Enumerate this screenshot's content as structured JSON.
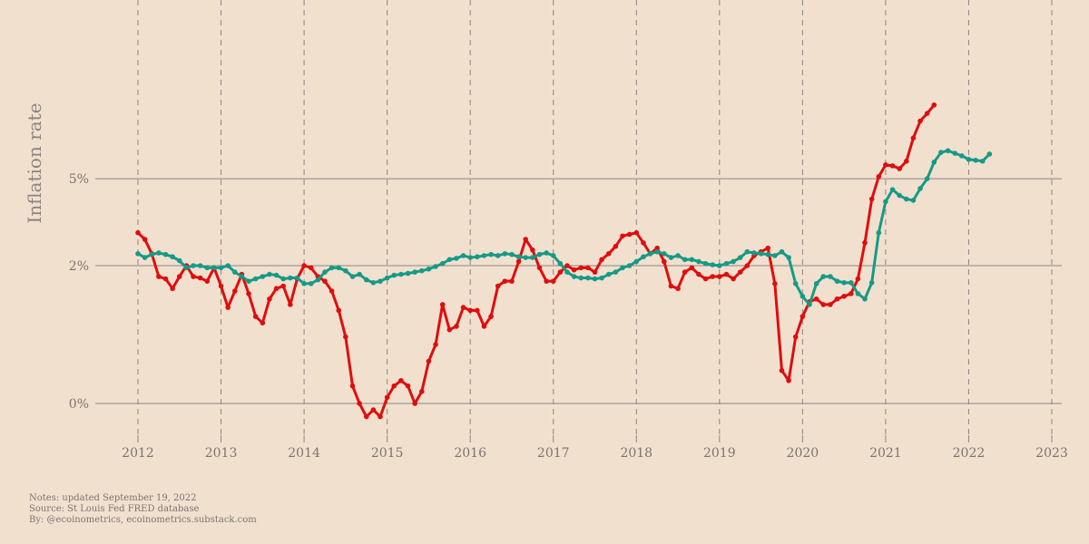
{
  "colors": {
    "background": "#f2e0cf",
    "series_red": "#e00d0d",
    "series_teal": "#169a86",
    "grid": "#8a8480",
    "text": "#7a7470"
  },
  "notes": {
    "line1": "Notes: updated September 19, 2022",
    "line2": "Source: St Louis Fed FRED database",
    "line3": "By: @ecoinometrics, ecoinometrics.substack.com"
  },
  "chart_data": {
    "type": "line",
    "ylabel": "Inflation rate",
    "xlabel": "",
    "x_ticks": [
      2012,
      2013,
      2014,
      2015,
      2016,
      2017,
      2018,
      2019,
      2020,
      2021,
      2022,
      2023
    ],
    "x_tick_labels": [
      "2012",
      "2013",
      "2014",
      "2015",
      "2016",
      "2017",
      "2018",
      "2019",
      "2020",
      "2021",
      "2022",
      "2023"
    ],
    "y_ticks": [
      0,
      2,
      5
    ],
    "y_tick_labels": [
      "0%",
      "2%",
      "5%"
    ],
    "y_scale": "log1p",
    "xlim": [
      2011.8,
      2023.1
    ],
    "grid": {
      "x": "dashed-vertical",
      "y": "solid-horizontal"
    },
    "x_start": "2012-01",
    "x_step": "1 month",
    "series": [
      {
        "color": "#e00d0d",
        "values": [
          2.9,
          2.7,
          2.3,
          1.75,
          1.7,
          1.5,
          1.75,
          2.0,
          1.75,
          1.72,
          1.65,
          1.95,
          1.55,
          1.15,
          1.45,
          1.8,
          1.4,
          1.0,
          0.9,
          1.3,
          1.5,
          1.55,
          1.2,
          1.7,
          2.0,
          1.95,
          1.75,
          1.65,
          1.45,
          1.1,
          0.7,
          0.15,
          0.0,
          -0.1,
          -0.05,
          -0.1,
          0.05,
          0.15,
          0.2,
          0.15,
          0.0,
          0.1,
          0.4,
          0.6,
          1.2,
          0.8,
          0.85,
          1.15,
          1.1,
          1.1,
          0.85,
          1.0,
          1.55,
          1.65,
          1.65,
          2.1,
          2.7,
          2.4,
          1.95,
          1.65,
          1.65,
          1.85,
          2.0,
          1.9,
          1.95,
          1.95,
          1.85,
          2.15,
          2.3,
          2.5,
          2.8,
          2.85,
          2.9,
          2.6,
          2.3,
          2.45,
          2.1,
          1.55,
          1.5,
          1.85,
          1.95,
          1.8,
          1.7,
          1.75,
          1.75,
          1.8,
          1.7,
          1.85,
          2.0,
          2.25,
          2.35,
          2.45,
          1.6,
          0.3,
          0.2,
          0.7,
          1.0,
          1.25,
          1.3,
          1.2,
          1.2,
          1.3,
          1.35,
          1.4,
          1.7,
          2.6,
          4.1,
          5.1,
          5.7,
          5.65,
          5.5,
          5.9,
          7.3,
          8.5,
          9.1,
          9.8
        ]
      },
      {
        "color": "#169a86",
        "values": [
          2.3,
          2.2,
          2.28,
          2.32,
          2.28,
          2.22,
          2.12,
          1.95,
          2.0,
          2.0,
          1.95,
          1.95,
          1.95,
          2.0,
          1.85,
          1.75,
          1.65,
          1.7,
          1.75,
          1.8,
          1.78,
          1.7,
          1.72,
          1.72,
          1.6,
          1.6,
          1.68,
          1.85,
          1.95,
          1.95,
          1.88,
          1.75,
          1.8,
          1.68,
          1.62,
          1.65,
          1.72,
          1.78,
          1.8,
          1.82,
          1.85,
          1.88,
          1.92,
          1.98,
          2.05,
          2.15,
          2.18,
          2.25,
          2.2,
          2.22,
          2.25,
          2.28,
          2.25,
          2.3,
          2.28,
          2.22,
          2.2,
          2.2,
          2.28,
          2.32,
          2.25,
          2.05,
          1.85,
          1.75,
          1.72,
          1.72,
          1.7,
          1.72,
          1.8,
          1.85,
          1.95,
          2.0,
          2.1,
          2.22,
          2.3,
          2.35,
          2.3,
          2.2,
          2.25,
          2.15,
          2.15,
          2.1,
          2.05,
          2.02,
          2.0,
          2.05,
          2.1,
          2.2,
          2.35,
          2.32,
          2.3,
          2.28,
          2.25,
          2.35,
          2.2,
          1.6,
          1.35,
          1.2,
          1.6,
          1.75,
          1.75,
          1.65,
          1.62,
          1.62,
          1.4,
          1.3,
          1.62,
          2.9,
          4.0,
          4.5,
          4.25,
          4.1,
          4.05,
          4.55,
          5.0,
          5.85,
          6.4,
          6.5,
          6.35,
          6.2,
          6.0,
          5.95,
          5.9,
          6.3
        ]
      }
    ]
  }
}
